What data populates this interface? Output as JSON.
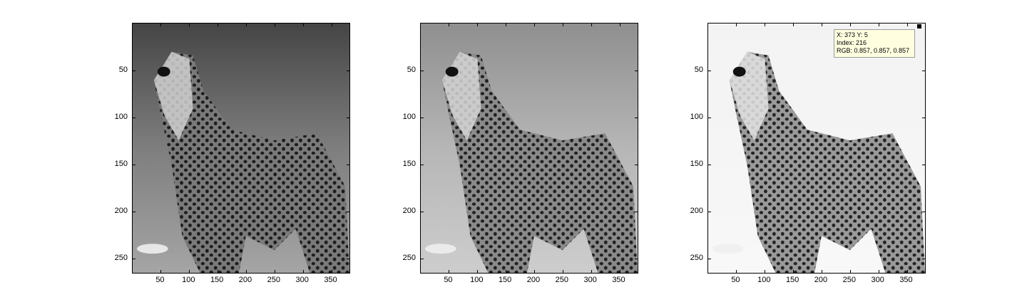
{
  "axes": [
    {
      "id": "axes-1",
      "tone": "dark",
      "xticks": [
        "50",
        "100",
        "150",
        "200",
        "250",
        "300",
        "350"
      ],
      "yticks": [
        "50",
        "100",
        "150",
        "200",
        "250"
      ]
    },
    {
      "id": "axes-2",
      "tone": "medium",
      "xticks": [
        "50",
        "100",
        "150",
        "200",
        "250",
        "300",
        "350"
      ],
      "yticks": [
        "50",
        "100",
        "150",
        "200",
        "250"
      ]
    },
    {
      "id": "axes-3",
      "tone": "bright",
      "xticks": [
        "50",
        "100",
        "150",
        "200",
        "250",
        "300",
        "350"
      ],
      "yticks": [
        "50",
        "100",
        "150",
        "200",
        "250"
      ]
    }
  ],
  "image": {
    "width": 384,
    "height": 266
  },
  "xtick_values": [
    50,
    100,
    150,
    200,
    250,
    300,
    350
  ],
  "ytick_values": [
    50,
    100,
    150,
    200,
    250
  ],
  "datatip": {
    "line1": "X: 373 Y: 5",
    "line2": "Index: 216",
    "line3": "RGB: 0.857, 0.857, 0.857"
  }
}
